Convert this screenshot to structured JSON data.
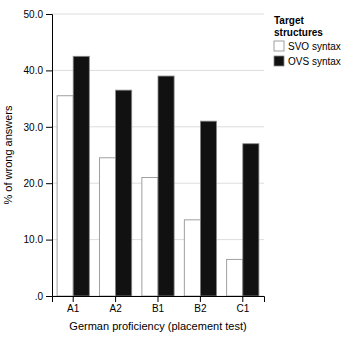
{
  "chart_data": {
    "type": "bar",
    "categories": [
      "A1",
      "A2",
      "B1",
      "B2",
      "C1"
    ],
    "series": [
      {
        "name": "SVO syntax",
        "color": "#ffffff",
        "values": [
          35.5,
          24.5,
          21.0,
          13.5,
          6.5
        ]
      },
      {
        "name": "OVS syntax",
        "color": "#111111",
        "values": [
          42.5,
          36.5,
          39.0,
          31.0,
          27.0
        ]
      }
    ],
    "xlabel": "German proficiency (placement test)",
    "ylabel": "% of wrong answers",
    "legend_title": "Target\nstructures",
    "ylim": [
      0,
      50
    ],
    "yticks": [
      {
        "value": 0,
        "label": ".0"
      },
      {
        "value": 10.0,
        "label": "10.0"
      },
      {
        "value": 20.0,
        "label": "20.0"
      },
      {
        "value": 30.0,
        "label": "30.0"
      },
      {
        "value": 40.0,
        "label": "40.0"
      },
      {
        "value": 50.0,
        "label": "50.0"
      }
    ],
    "grid": true,
    "legend": "upper right"
  }
}
